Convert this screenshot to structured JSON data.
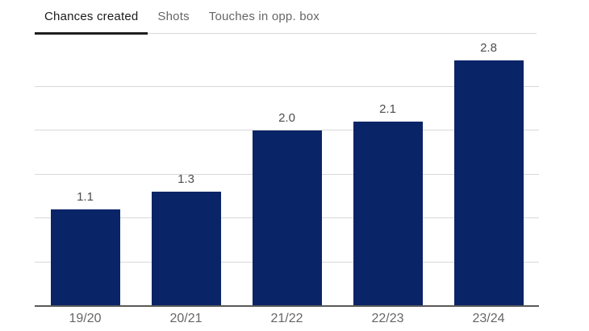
{
  "tabs": {
    "items": [
      {
        "label": "Chances created",
        "active": true
      },
      {
        "label": "Shots",
        "active": false
      },
      {
        "label": "Touches in opp. box",
        "active": false
      }
    ]
  },
  "chart_data": {
    "type": "bar",
    "title": "",
    "xlabel": "",
    "ylabel": "",
    "categories": [
      "19/20",
      "20/21",
      "21/22",
      "22/23",
      "23/24"
    ],
    "values": [
      1.1,
      1.3,
      2.0,
      2.1,
      2.8
    ],
    "value_labels": [
      "1.1",
      "1.3",
      "2.0",
      "2.1",
      "2.8"
    ],
    "ylim": [
      0,
      3.0
    ],
    "gridlines": [
      0.5,
      1.0,
      1.5,
      2.0,
      2.5
    ],
    "grid": true,
    "legend": "none",
    "colors": {
      "bar": "#0a2468",
      "gridline": "#d8d8d8",
      "axis": "#5a5a5a",
      "value_label": "#4d4d4d",
      "category_label": "#666666",
      "tab_active": "#1a1a1a",
      "tab_inactive": "#666666"
    }
  }
}
